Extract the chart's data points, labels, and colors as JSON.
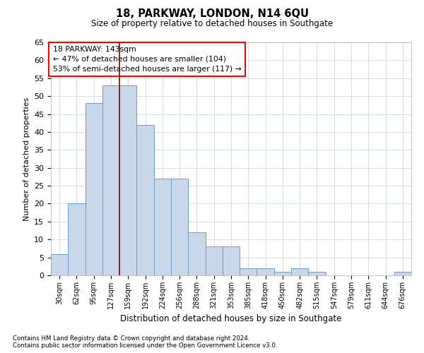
{
  "title": "18, PARKWAY, LONDON, N14 6QU",
  "subtitle": "Size of property relative to detached houses in Southgate",
  "xlabel": "Distribution of detached houses by size in Southgate",
  "ylabel": "Number of detached properties",
  "footnote1": "Contains HM Land Registry data © Crown copyright and database right 2024.",
  "footnote2": "Contains public sector information licensed under the Open Government Licence v3.0.",
  "bar_labels": [
    "30sqm",
    "62sqm",
    "95sqm",
    "127sqm",
    "159sqm",
    "192sqm",
    "224sqm",
    "256sqm",
    "288sqm",
    "321sqm",
    "353sqm",
    "385sqm",
    "418sqm",
    "450sqm",
    "482sqm",
    "515sqm",
    "547sqm",
    "579sqm",
    "611sqm",
    "644sqm",
    "676sqm"
  ],
  "bar_values": [
    6,
    20,
    48,
    53,
    53,
    42,
    27,
    27,
    12,
    8,
    8,
    2,
    2,
    1,
    2,
    1,
    0,
    0,
    0,
    0,
    1
  ],
  "bar_color": "#c8d8ea",
  "bar_edgecolor": "#6a9fc0",
  "ylim": [
    0,
    65
  ],
  "yticks": [
    0,
    5,
    10,
    15,
    20,
    25,
    30,
    35,
    40,
    45,
    50,
    55,
    60,
    65
  ],
  "vline_x": 3.5,
  "annotation_title": "18 PARKWAY: 143sqm",
  "annotation_line1": "← 47% of detached houses are smaller (104)",
  "annotation_line2": "53% of semi-detached houses are larger (117) →",
  "line_color": "#8b0000",
  "grid_color": "#ccd8e4",
  "background_color": "#ffffff",
  "fig_width": 6.0,
  "fig_height": 5.0,
  "dpi": 100
}
